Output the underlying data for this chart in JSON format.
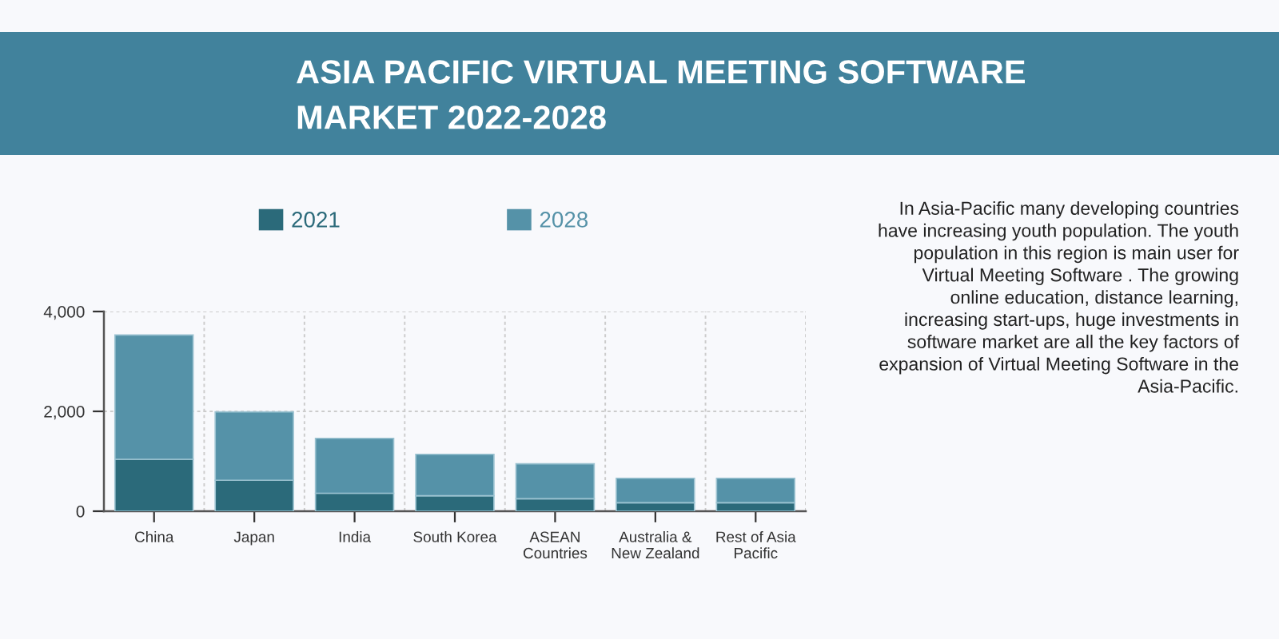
{
  "chart_data": {
    "type": "bar",
    "title": "ASIA PACIFIC VIRTUAL MEETING SOFTWARE\nMARKET 2022-2028",
    "categories": [
      "China",
      "Japan",
      "India",
      "South Korea",
      "ASEAN\nCountries",
      "Australia &\nNew Zealand",
      "Rest of Asia\nPacific"
    ],
    "series": [
      {
        "name": "2021",
        "color": "#2b6a7a",
        "values": [
          1040,
          620,
          360,
          310,
          250,
          170,
          170
        ]
      },
      {
        "name": "2028",
        "color": "#5592a8",
        "values": [
          2490,
          1370,
          1100,
          830,
          700,
          490,
          490
        ]
      }
    ],
    "stacked": true,
    "ylim": [
      0,
      4000
    ],
    "yticks": [
      0,
      {
        "value": 2000,
        "label": "2,000"
      },
      {
        "value": 4000,
        "label": "4,000"
      }
    ],
    "grid": true,
    "legend": "top",
    "annotations": [
      "In Asia-Pacific many developing countries\nhave increasing youth population. The youth\npopulation in this region is main user for\nVirtual Meeting Software . The growing\nonline education, distance learning,\nincreasing start-ups, huge investments in\nsoftware market are all the key factors of\nexpansion of Virtual Meeting Software in the\nAsia-Pacific."
    ]
  }
}
